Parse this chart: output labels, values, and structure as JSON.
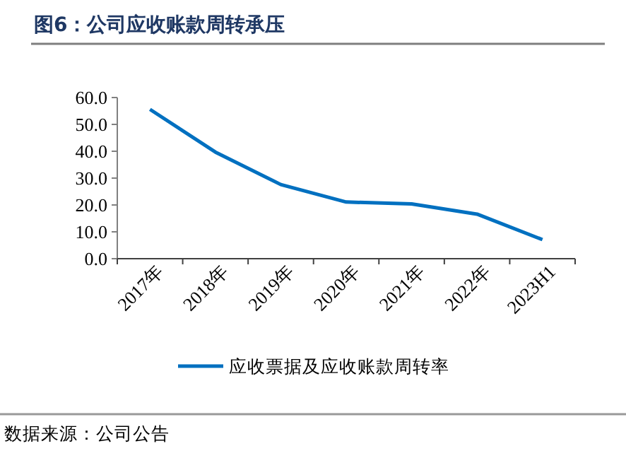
{
  "chart_data": {
    "type": "line",
    "title": "图6：公司应收账款周转承压",
    "categories": [
      "2017年",
      "2018年",
      "2019年",
      "2020年",
      "2021年",
      "2022年",
      "2023H1"
    ],
    "series": [
      {
        "name": "应收票据及应收账款周转率",
        "color": "#0070c0",
        "values": [
          55.6,
          39.7,
          27.6,
          21.1,
          20.4,
          16.6,
          7.1
        ]
      }
    ],
    "ylim": [
      0,
      60
    ],
    "yticks": [
      {
        "value": 0,
        "label": "0.0"
      },
      {
        "value": 10,
        "label": "10.0"
      },
      {
        "value": 20,
        "label": "20.0"
      },
      {
        "value": 30,
        "label": "30.0"
      },
      {
        "value": 40,
        "label": "40.0"
      },
      {
        "value": 50,
        "label": "50.0"
      },
      {
        "value": 60,
        "label": "60.0"
      }
    ],
    "grid": false,
    "legend": "bottom",
    "marker": "none",
    "line_style": "solid",
    "annotations": [
      "数据来源：公司公告"
    ]
  }
}
